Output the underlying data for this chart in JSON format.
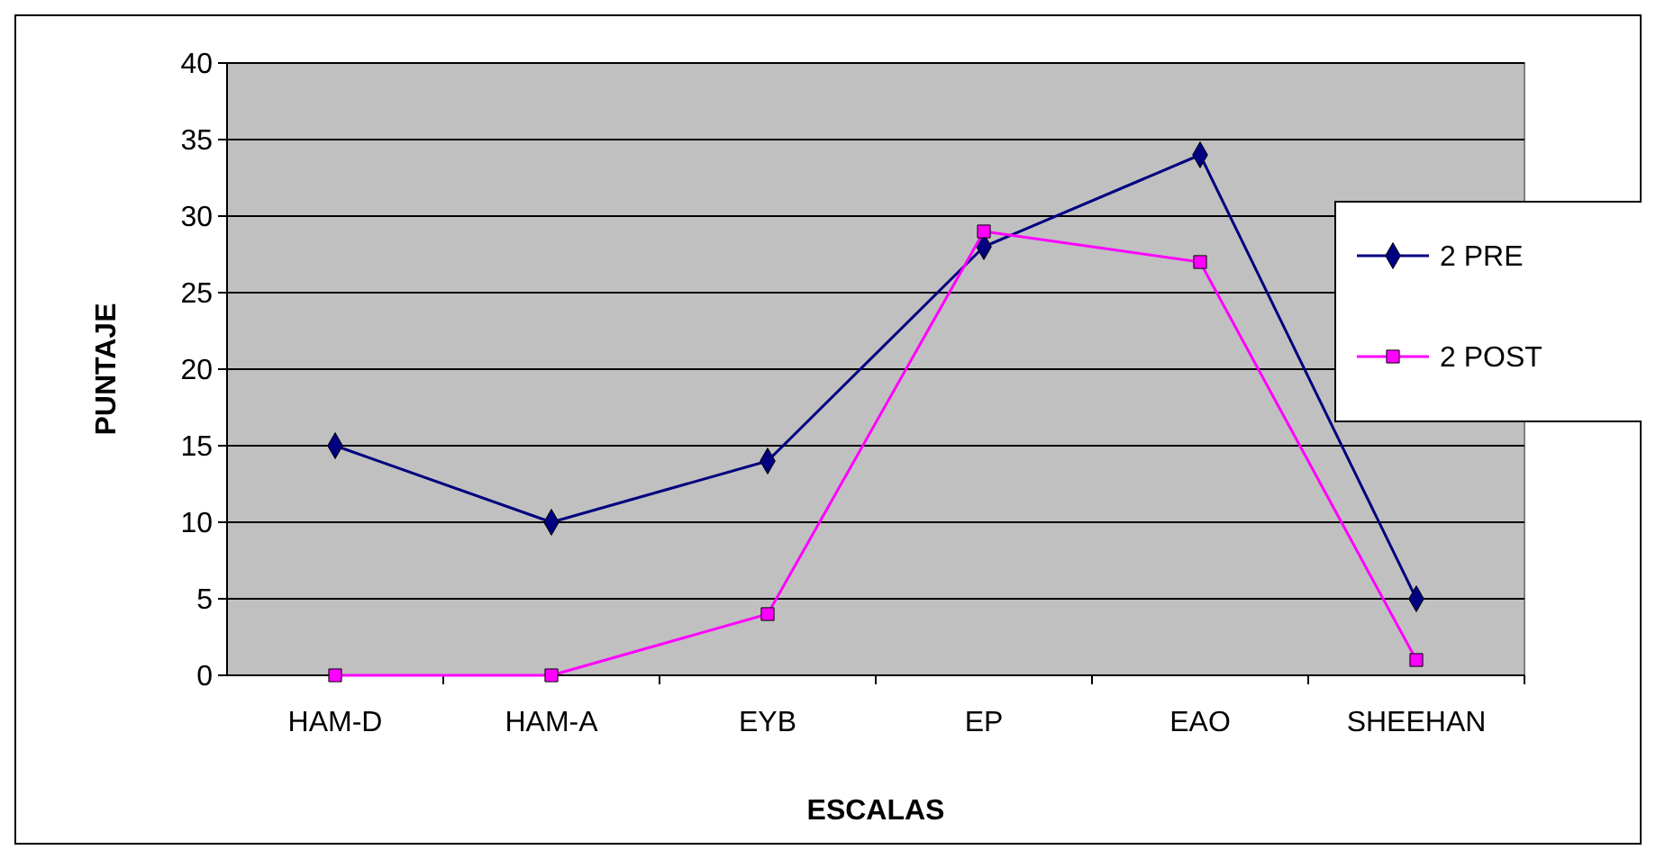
{
  "chart_data": {
    "type": "line",
    "xlabel": "ESCALAS",
    "ylabel": "PUNTAJE",
    "categories": [
      "HAM-D",
      "HAM-A",
      "EYB",
      "EP",
      "EAO",
      "SHEEHAN"
    ],
    "series": [
      {
        "name": "2 PRE",
        "color": "#000080",
        "marker": "diamond",
        "values": [
          15,
          10,
          14,
          28,
          34,
          5
        ]
      },
      {
        "name": "2 POST",
        "color": "#ff00ff",
        "marker": "square",
        "values": [
          0,
          0,
          4,
          29,
          27,
          1
        ]
      }
    ],
    "ylim": [
      0,
      40
    ],
    "yticks": [
      0,
      5,
      10,
      15,
      20,
      25,
      30,
      35,
      40
    ],
    "grid": "y",
    "legend": "right"
  }
}
